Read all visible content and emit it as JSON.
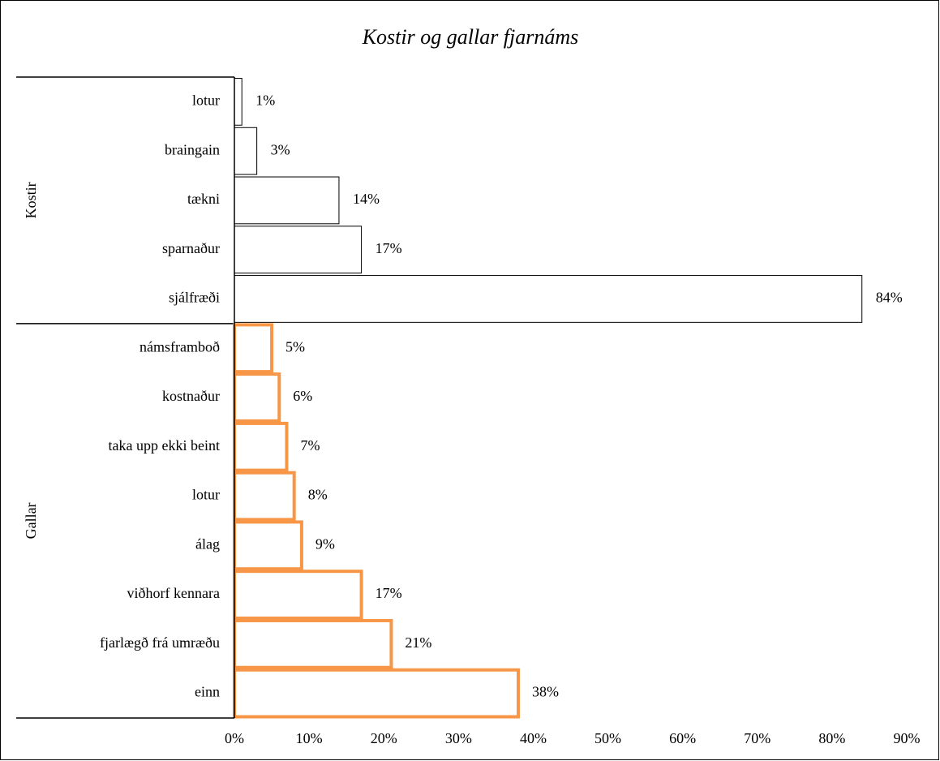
{
  "chart_data": {
    "type": "bar",
    "orientation": "horizontal",
    "title": "Kostir og gallar fjarnáms",
    "groups": [
      {
        "name": "Kostir",
        "color": "#000000",
        "categories": [
          "lotur",
          "braingain",
          "tækni",
          "sparnaður",
          "sjálfræði"
        ],
        "values": [
          1,
          3,
          14,
          17,
          84
        ],
        "value_labels": [
          "1%",
          "3%",
          "14%",
          "17%",
          "84%"
        ]
      },
      {
        "name": "Gallar",
        "color": "#f79646",
        "categories": [
          "námsframboð",
          "kostnaður",
          "taka upp ekki beint",
          "lotur",
          "álag",
          "viðhorf kennara",
          "fjarlægð frá umræðu",
          "einn"
        ],
        "values": [
          5,
          6,
          7,
          8,
          9,
          17,
          21,
          38
        ],
        "value_labels": [
          "5%",
          "6%",
          "7%",
          "8%",
          "9%",
          "17%",
          "21%",
          "38%"
        ]
      }
    ],
    "xlim": [
      0,
      90
    ],
    "xticks": [
      {
        "value": 0,
        "label": "0%"
      },
      {
        "value": 10,
        "label": "10%"
      },
      {
        "value": 20,
        "label": "20%"
      },
      {
        "value": 30,
        "label": "30%"
      },
      {
        "value": 40,
        "label": "40%"
      },
      {
        "value": 50,
        "label": "50%"
      },
      {
        "value": 60,
        "label": "60%"
      },
      {
        "value": 70,
        "label": "70%"
      },
      {
        "value": 80,
        "label": "80%"
      },
      {
        "value": 90,
        "label": "90%"
      }
    ],
    "grid": false
  }
}
